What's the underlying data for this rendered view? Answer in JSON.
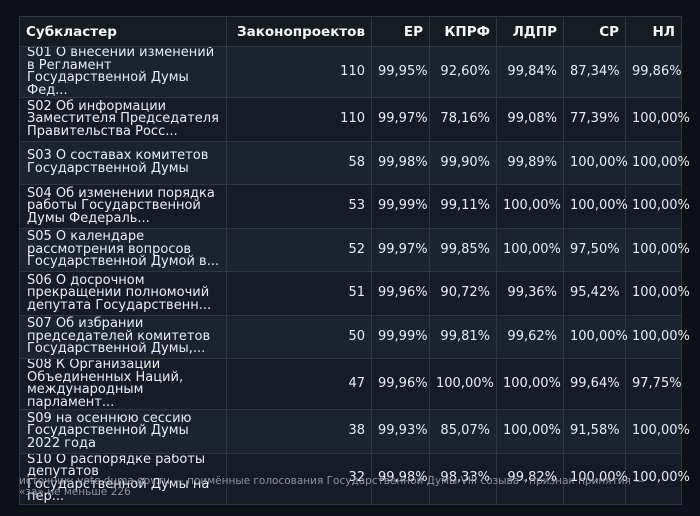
{
  "table": {
    "headers": [
      "Субкластер",
      "Законопроектов",
      "ЕР",
      "КПРФ",
      "ЛДПР",
      "СР",
      "НЛ"
    ],
    "rows": [
      {
        "name": "S01 О внесении изменений в Регламент Государственной Думы Фед...",
        "count": "110",
        "er": "99,95%",
        "kprf": "92,60%",
        "ldpr": "99,84%",
        "sr": "87,34%",
        "nl": "99,86%"
      },
      {
        "name": "S02 Об информации Заместителя Председателя Правительства Росс...",
        "count": "110",
        "er": "99,97%",
        "kprf": "78,16%",
        "ldpr": "99,08%",
        "sr": "77,39%",
        "nl": "100,00%"
      },
      {
        "name": "S03 О составах комитетов Государственной Думы",
        "count": "58",
        "er": "99,98%",
        "kprf": "99,90%",
        "ldpr": "99,89%",
        "sr": "100,00%",
        "nl": "100,00%"
      },
      {
        "name": "S04 Об изменении порядка работы Государственной Думы Федераль...",
        "count": "53",
        "er": "99,99%",
        "kprf": "99,11%",
        "ldpr": "100,00%",
        "sr": "100,00%",
        "nl": "100,00%"
      },
      {
        "name": "S05 О календаре рассмотрения вопросов Государственной Думой в...",
        "count": "52",
        "er": "99,97%",
        "kprf": "99,85%",
        "ldpr": "100,00%",
        "sr": "97,50%",
        "nl": "100,00%"
      },
      {
        "name": "S06 О досрочном прекращении полномочий депутата Государственн...",
        "count": "51",
        "er": "99,96%",
        "kprf": "90,72%",
        "ldpr": "99,36%",
        "sr": "95,42%",
        "nl": "100,00%"
      },
      {
        "name": "S07 Об избрании председателей комитетов Государственной Думы,...",
        "count": "50",
        "er": "99,99%",
        "kprf": "99,81%",
        "ldpr": "99,62%",
        "sr": "100,00%",
        "nl": "100,00%"
      },
      {
        "name": "S08 К Организации Объединенных Наций, международным парламент...",
        "count": "47",
        "er": "99,96%",
        "kprf": "100,00%",
        "ldpr": "100,00%",
        "sr": "99,64%",
        "nl": "97,75%"
      },
      {
        "name": "S09 на осеннюю сессию Государственной Думы 2022 года",
        "count": "38",
        "er": "99,93%",
        "kprf": "85,07%",
        "ldpr": "100,00%",
        "sr": "91,58%",
        "nl": "100,00%"
      },
      {
        "name": "S10 О распорядке работы депутатов Государственной Думы на пер...",
        "count": "32",
        "er": "99,98%",
        "kprf": "98,33%",
        "ldpr": "99,82%",
        "sr": "100,00%",
        "nl": "100,00%"
      }
    ]
  },
  "source_note": "источник: vote.duma.gov.ru — поимённые голосования Государственной Думы VIII созыва · признак принятия — «за» не меньше 226"
}
